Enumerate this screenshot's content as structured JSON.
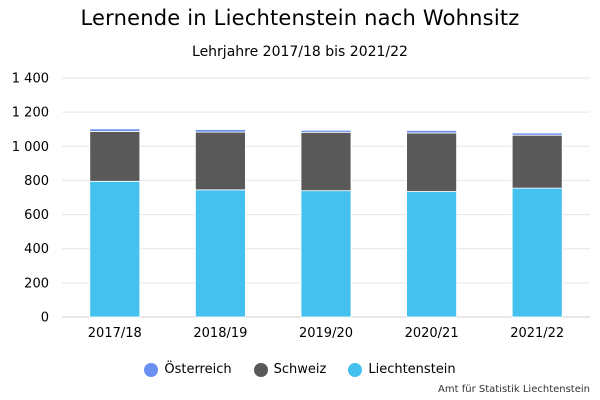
{
  "chart_data": {
    "type": "bar",
    "stacked": true,
    "title": "Lernende in Liechtenstein nach Wohnsitz",
    "subtitle": "Lehrjahre 2017/18 bis 2021/22",
    "categories": [
      "2017/18",
      "2018/19",
      "2019/20",
      "2020/21",
      "2021/22"
    ],
    "series": [
      {
        "name": "Liechtenstein",
        "color": "#45c1ef",
        "values": [
          795,
          745,
          740,
          735,
          755
        ]
      },
      {
        "name": "Schweiz",
        "color": "#595959",
        "values": [
          292,
          338,
          342,
          343,
          310
        ]
      },
      {
        "name": "Österreich",
        "color": "#6a8ff1",
        "values": [
          15,
          15,
          12,
          15,
          13
        ]
      }
    ],
    "legend_order": [
      "Österreich",
      "Schweiz",
      "Liechtenstein"
    ],
    "ylim": [
      0,
      1400
    ],
    "yticks": [
      0,
      200,
      400,
      600,
      800,
      1000,
      1200,
      1400
    ],
    "ytick_labels": [
      "0",
      "200",
      "400",
      "600",
      "800",
      "1 000",
      "1 200",
      "1 400"
    ],
    "grid": true,
    "legend_position": "bottom",
    "source": "Amt für Statistik Liechtenstein"
  }
}
